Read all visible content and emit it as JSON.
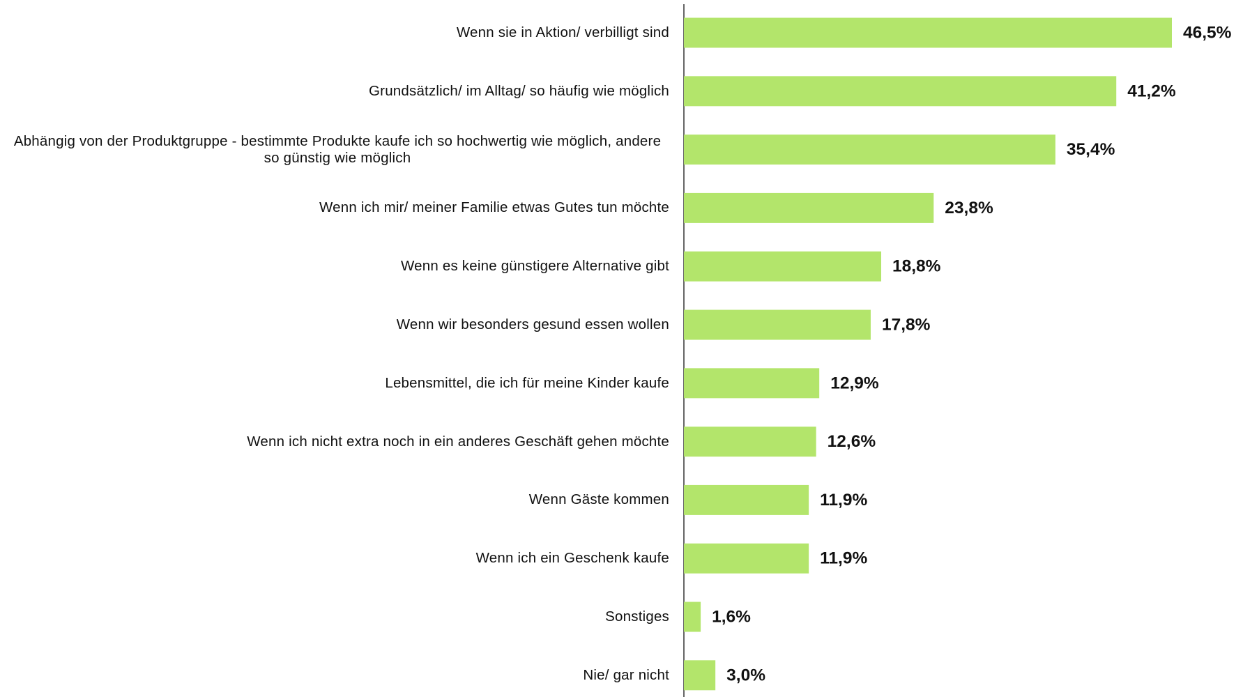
{
  "chart_data": {
    "type": "bar",
    "orientation": "horizontal",
    "color": "#b3e56b",
    "categories": [
      "Wenn sie in Aktion/ verbilligt sind",
      "Grundsätzlich/ im Alltag/ so häufig wie möglich",
      "Abhängig von der Produktgruppe - bestimmte Produkte kaufe ich so hochwertig wie möglich, andere so günstig wie möglich",
      "Wenn ich mir/ meiner Familie etwas Gutes tun möchte",
      "Wenn es keine günstigere Alternative gibt",
      "Wenn wir besonders gesund essen wollen",
      "Lebensmittel, die ich für meine Kinder kaufe",
      "Wenn ich nicht extra noch in ein anderes Geschäft gehen möchte",
      "Wenn Gäste kommen",
      "Wenn ich ein Geschenk kaufe",
      "Sonstiges",
      "Nie/ gar nicht"
    ],
    "values": [
      46.5,
      41.2,
      35.4,
      23.8,
      18.8,
      17.8,
      12.9,
      12.6,
      11.9,
      11.9,
      1.6,
      3.0
    ],
    "value_labels": [
      "46,5%",
      "41,2%",
      "35,4%",
      "23,8%",
      "18,8%",
      "17,8%",
      "12,9%",
      "12,6%",
      "11,9%",
      "11,9%",
      "1,6%",
      "3,0%"
    ]
  }
}
